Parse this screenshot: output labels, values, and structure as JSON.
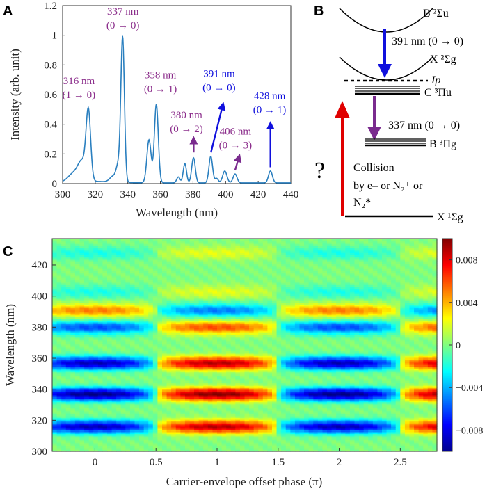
{
  "panels": {
    "a": "A",
    "b": "B",
    "c": "C"
  },
  "chart_data": [
    {
      "type": "line",
      "panel": "A",
      "xlabel": "Wavelength (nm)",
      "ylabel": "Intensity (arb. unit)",
      "xlim": [
        300,
        440
      ],
      "ylim": [
        0,
        1.2
      ],
      "xticks": [
        "300",
        "320",
        "340",
        "360",
        "380",
        "400",
        "420",
        "440"
      ],
      "yticks": [
        "0",
        "0.2",
        "0.4",
        "0.6",
        "0.8",
        "1",
        "1.2"
      ],
      "line_color": "#2a7fbf",
      "peaks": [
        {
          "center": 307,
          "height": 0.06,
          "width": 3.5
        },
        {
          "center": 312,
          "height": 0.12,
          "width": 2.4
        },
        {
          "center": 315.8,
          "height": 0.46,
          "width": 1.4
        },
        {
          "center": 331,
          "height": 0.04,
          "width": 2.0
        },
        {
          "center": 334,
          "height": 0.1,
          "width": 1.2
        },
        {
          "center": 336.8,
          "height": 0.98,
          "width": 1.1
        },
        {
          "center": 353,
          "height": 0.29,
          "width": 1.3
        },
        {
          "center": 357.5,
          "height": 0.53,
          "width": 1.2
        },
        {
          "center": 371,
          "height": 0.04,
          "width": 1.0
        },
        {
          "center": 375,
          "height": 0.13,
          "width": 1.0
        },
        {
          "center": 380.3,
          "height": 0.17,
          "width": 1.1
        },
        {
          "center": 390.9,
          "height": 0.18,
          "width": 1.1
        },
        {
          "center": 394.5,
          "height": 0.03,
          "width": 1.0
        },
        {
          "center": 399.5,
          "height": 0.08,
          "width": 1.3
        },
        {
          "center": 405.8,
          "height": 0.06,
          "width": 1.2
        },
        {
          "center": 427.5,
          "height": 0.08,
          "width": 1.2
        }
      ],
      "annotations": [
        {
          "label": "316 nm",
          "sub": "(1 → 0)",
          "color": "purple",
          "x": 310,
          "y": 0.67
        },
        {
          "label": "337 nm",
          "sub": "(0 → 0)",
          "color": "purple",
          "x": 337,
          "y": 1.14
        },
        {
          "label": "358 nm",
          "sub": "(0 → 1)",
          "color": "purple",
          "x": 360,
          "y": 0.71
        },
        {
          "label": "380 nm",
          "sub": "(0 → 2)",
          "color": "purple",
          "x": 376,
          "y": 0.44
        },
        {
          "label": "391 nm",
          "sub": "(0 → 0)",
          "color": "blue",
          "x": 396,
          "y": 0.72
        },
        {
          "label": "406 nm",
          "sub": "(0 → 3)",
          "color": "purple",
          "x": 406,
          "y": 0.33
        },
        {
          "label": "428 nm",
          "sub": "(0 → 1)",
          "color": "blue",
          "x": 427,
          "y": 0.57
        }
      ]
    },
    {
      "type": "diagram",
      "panel": "B",
      "labels": {
        "b_state": "B ²Σu",
        "x_state": "X ²Σg",
        "ip": "Ip",
        "c_state": "C ³Πu",
        "b3_state": "B ³Πg",
        "ground": "X ¹Σg",
        "t391": "391 nm (0 → 0)",
        "t337": "337 nm (0 → 0)",
        "q": "?",
        "coll1": "Collision",
        "coll2": "by e– or N₂⁺ or",
        "coll3": "N₂*"
      }
    },
    {
      "type": "heatmap",
      "panel": "C",
      "xlabel": "Carrier-envelope offset phase (π)",
      "ylabel": "Wavelength (nm)",
      "xlim": [
        -0.35,
        2.8
      ],
      "ylim": [
        300,
        437
      ],
      "xticks": [
        "0",
        "0.5",
        "1",
        "1.5",
        "2",
        "2.5"
      ],
      "yticks": [
        "300",
        "320",
        "340",
        "360",
        "380",
        "400",
        "420"
      ],
      "colorbar_ticks": [
        "0.008",
        "0.004",
        "0",
        "−0.004",
        "−0.008"
      ],
      "clim": [
        -0.01,
        0.01
      ],
      "bands": [
        {
          "wavelength": 316,
          "amplitude": 0.009
        },
        {
          "wavelength": 337,
          "amplitude": 0.01
        },
        {
          "wavelength": 357,
          "amplitude": 0.009
        },
        {
          "wavelength": 380,
          "amplitude": 0.006
        },
        {
          "wavelength": 391,
          "amplitude": -0.005
        },
        {
          "wavelength": 403,
          "amplitude": 0.002
        },
        {
          "wavelength": 428,
          "amplitude": 0.002
        }
      ]
    }
  ]
}
